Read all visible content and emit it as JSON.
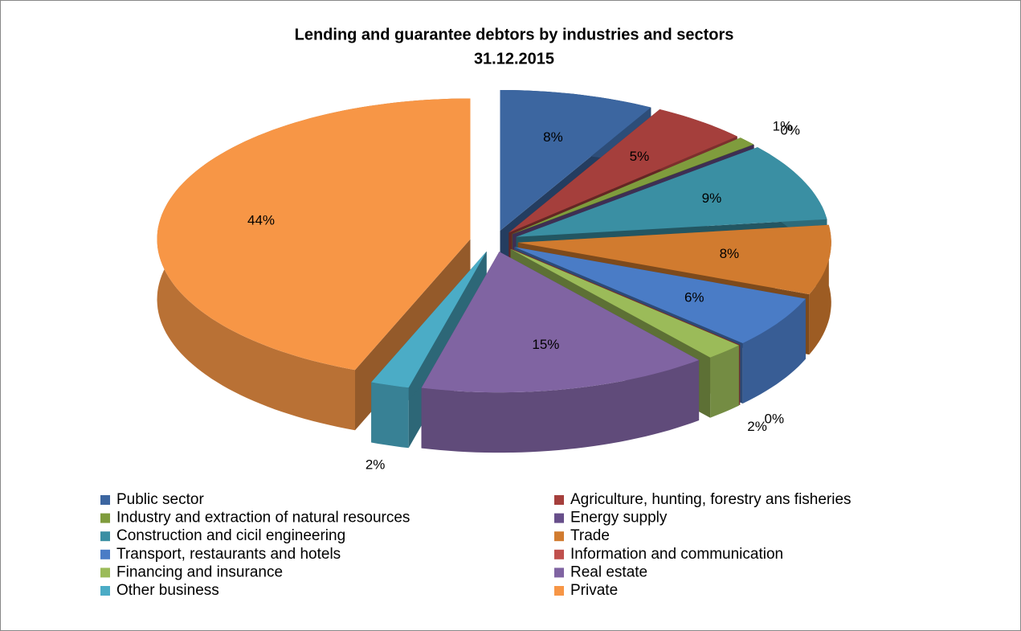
{
  "chart_data": {
    "type": "pie3d",
    "title": "Lending and guarantee debtors by industries and sectors",
    "subtitle": "31.12.2015",
    "categories": [
      "Public sector",
      "Agriculture, hunting, forestry ans fisheries",
      "Industry and extraction of natural resources",
      "Energy supply",
      "Construction and cicil engineering",
      "Trade",
      "Transport, restaurants and hotels",
      "Information and communication",
      "Financing and insurance",
      "Real estate",
      "Other business",
      "Private"
    ],
    "values": [
      8,
      5,
      1,
      0,
      9,
      8,
      6,
      0,
      2,
      15,
      2,
      44
    ],
    "value_labels": [
      "8%",
      "5%",
      "1%",
      "0%",
      "9%",
      "8%",
      "6%",
      "0%",
      "2%",
      "15%",
      "2%",
      "44%"
    ],
    "colors": [
      "#3c66a0",
      "#a53f3c",
      "#7f9c3d",
      "#674e8a",
      "#3a8fa3",
      "#d17b2f",
      "#4a7cc6",
      "#c0504d",
      "#9bbb59",
      "#8064a2",
      "#4bacc6",
      "#f79646"
    ]
  }
}
